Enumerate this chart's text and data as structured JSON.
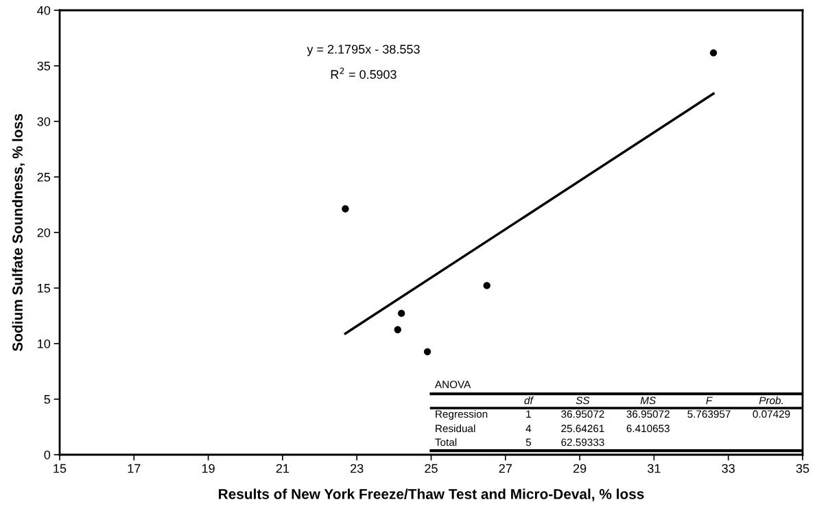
{
  "chart_data": {
    "type": "scatter",
    "xlabel": "Results of New York Freeze/Thaw Test and Micro-Deval, % loss",
    "ylabel": "Sodium Sulfate Soundness, % loss",
    "xlim": [
      15,
      35
    ],
    "xticks": [
      15,
      17,
      19,
      21,
      23,
      25,
      27,
      29,
      31,
      33,
      35
    ],
    "ylim": [
      0,
      40
    ],
    "yticks": [
      0,
      5,
      10,
      15,
      20,
      25,
      30,
      35,
      40
    ],
    "grid": false,
    "marker": "circle",
    "series": [
      {
        "color": "#000000",
        "x": [
          22.69,
          24.1,
          24.2,
          24.9,
          26.5,
          32.6
        ],
        "values": [
          22.13,
          11.25,
          12.72,
          9.27,
          15.22,
          36.17
        ]
      },
      {
        "type": "line",
        "color": "#000000",
        "x": [
          22.69,
          32.6
        ],
        "values": [
          10.9,
          32.5
        ],
        "line_style": "solid",
        "marker": "none"
      }
    ],
    "annotations": [
      "y = 2.1795x - 38.553",
      "R$^{2}$ = 0.5903",
      "ANOVA",
      "df",
      "SS",
      "MS",
      "F",
      "Prob.",
      "Regression",
      "1",
      "36.95072",
      "36.95072",
      "5.763957",
      "0.07429",
      "Residual",
      "4",
      "25.64261",
      "6.410653",
      "Total",
      "5",
      "62.59333"
    ]
  }
}
